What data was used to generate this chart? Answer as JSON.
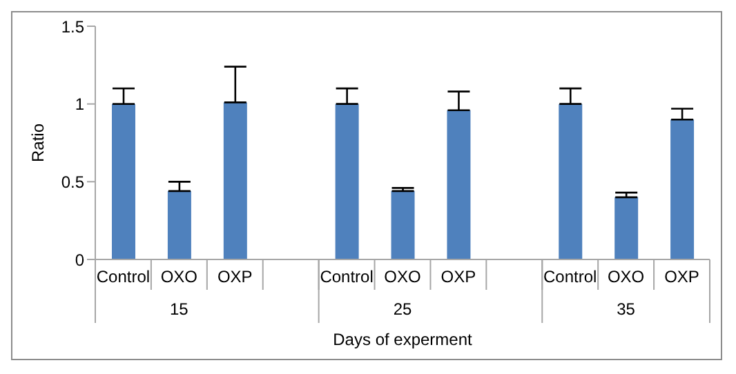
{
  "chart_data": {
    "type": "bar",
    "categories": [
      "Control",
      "OXO",
      "OXP",
      null,
      "Control",
      "OXO",
      "OXP",
      null,
      "Control",
      "OXO",
      "OXP"
    ],
    "series": [
      {
        "color": "#4f81bd",
        "values": [
          1.0,
          0.44,
          1.01,
          null,
          1.0,
          0.44,
          0.96,
          null,
          1.0,
          0.4,
          0.9
        ],
        "errors": [
          [
            1.0,
            1.1
          ],
          [
            0.44,
            0.5
          ],
          [
            1.01,
            1.24
          ],
          null,
          [
            1.0,
            1.1
          ],
          [
            0.44,
            0.46
          ],
          [
            0.96,
            1.08
          ],
          null,
          [
            1.0,
            1.1
          ],
          [
            0.4,
            0.43
          ],
          [
            0.9,
            0.97
          ]
        ]
      }
    ],
    "ylim": [
      0,
      1.5
    ],
    "yticks": [
      0,
      0.5,
      1,
      1.5
    ],
    "ylabel": "Ratio",
    "xlabel": "Days of experment",
    "annotations": [
      "15",
      "25",
      "35"
    ],
    "grid": false,
    "legend": false
  }
}
